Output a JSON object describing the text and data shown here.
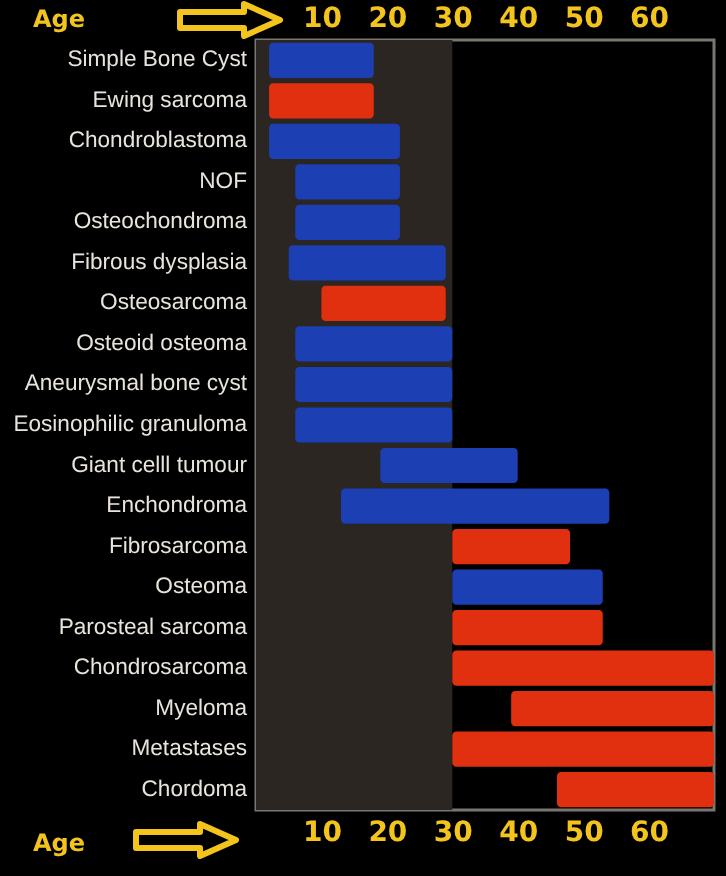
{
  "chart_data": {
    "type": "bar",
    "orientation": "horizontal",
    "xlabel": "Age",
    "x2label": "Age",
    "categories": [
      "Simple Bone Cyst",
      "Ewing sarcoma",
      "Chondroblastoma",
      "NOF",
      "Osteochondroma",
      "Fibrous dysplasia",
      "Osteosarcoma",
      "Osteoid osteoma",
      "Aneurysmal bone cyst",
      "Eosinophilic granuloma",
      "Giant celll tumour",
      "Enchondroma",
      "Fibrosarcoma",
      "Osteoma",
      "Parosteal sarcoma",
      "Chondrosarcoma",
      "Myeloma",
      "Metastases",
      "Chordoma"
    ],
    "base": [
      2,
      2,
      2,
      6,
      6,
      5,
      10,
      6,
      6,
      6,
      19,
      13,
      30,
      30,
      30,
      30,
      39,
      30,
      46
    ],
    "values": [
      16,
      16,
      20,
      16,
      16,
      24,
      19,
      24,
      24,
      24,
      21,
      41,
      18,
      23,
      23,
      40,
      31,
      40,
      24
    ],
    "colors": [
      "#1c3fb4",
      "#e0300f",
      "#1c3fb4",
      "#1c3fb4",
      "#1c3fb4",
      "#1c3fb4",
      "#e0300f",
      "#1c3fb4",
      "#1c3fb4",
      "#1c3fb4",
      "#1c3fb4",
      "#1c3fb4",
      "#e0300f",
      "#1c3fb4",
      "#e0300f",
      "#e0300f",
      "#e0300f",
      "#e0300f",
      "#e0300f"
    ],
    "xlim": [
      0,
      70
    ],
    "xticks": [
      10,
      20,
      30,
      40,
      50,
      60
    ],
    "x2lim": [
      0,
      70
    ],
    "x2ticks": [
      10,
      20,
      30,
      40,
      50,
      60
    ],
    "bands": [
      {
        "axis": "x",
        "from": 0,
        "to": 30,
        "color": "#2b2621"
      }
    ],
    "grid": false
  }
}
